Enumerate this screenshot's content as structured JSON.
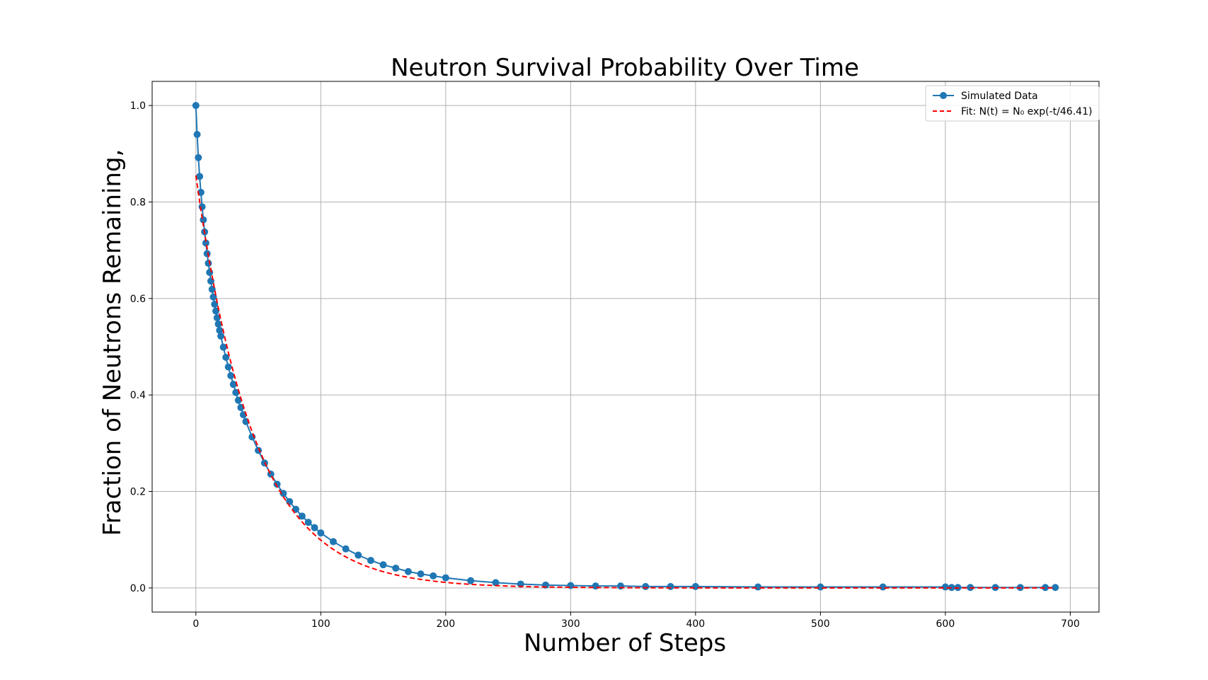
{
  "chart_data": {
    "type": "line",
    "title": "Neutron Survival Probability Over Time",
    "xlabel": "Number of Steps",
    "ylabel": "Fraction of Neutrons Remaining,",
    "xlim": [
      -35,
      723
    ],
    "ylim": [
      -0.05,
      1.05
    ],
    "xticks": [
      0,
      100,
      200,
      300,
      400,
      500,
      600,
      700
    ],
    "yticks": [
      0.0,
      0.2,
      0.4,
      0.6,
      0.8,
      1.0
    ],
    "xtick_labels": [
      "0",
      "100",
      "200",
      "300",
      "400",
      "500",
      "600",
      "700"
    ],
    "ytick_labels": [
      "0.0",
      "0.2",
      "0.4",
      "0.6",
      "0.8",
      "1.0"
    ],
    "grid": true,
    "legend_position": "top-right",
    "series": [
      {
        "name": "Simulated Data",
        "style": "line-with-markers",
        "color": "#1f77b4",
        "x": [
          0,
          1,
          2,
          3,
          4,
          5,
          6,
          7,
          8,
          9,
          10,
          11,
          12,
          13,
          14,
          15,
          16,
          17,
          18,
          19,
          20,
          22,
          24,
          26,
          28,
          30,
          32,
          34,
          36,
          38,
          40,
          45,
          50,
          55,
          60,
          65,
          70,
          75,
          80,
          85,
          90,
          95,
          100,
          110,
          120,
          130,
          140,
          150,
          160,
          170,
          180,
          190,
          200,
          220,
          240,
          260,
          280,
          300,
          320,
          340,
          360,
          380,
          400,
          450,
          500,
          550,
          600,
          605,
          610,
          620,
          640,
          660,
          680,
          688
        ],
        "y": [
          1.0,
          0.94,
          0.892,
          0.853,
          0.82,
          0.79,
          0.763,
          0.738,
          0.715,
          0.693,
          0.673,
          0.654,
          0.636,
          0.619,
          0.603,
          0.588,
          0.574,
          0.56,
          0.547,
          0.534,
          0.522,
          0.499,
          0.478,
          0.458,
          0.44,
          0.422,
          0.405,
          0.389,
          0.374,
          0.359,
          0.345,
          0.313,
          0.285,
          0.259,
          0.236,
          0.215,
          0.196,
          0.179,
          0.163,
          0.149,
          0.136,
          0.125,
          0.114,
          0.096,
          0.081,
          0.068,
          0.057,
          0.048,
          0.041,
          0.034,
          0.029,
          0.025,
          0.021,
          0.015,
          0.011,
          0.008,
          0.006,
          0.005,
          0.004,
          0.004,
          0.003,
          0.003,
          0.003,
          0.002,
          0.002,
          0.002,
          0.002,
          0.001,
          0.001,
          0.001,
          0.001,
          0.001,
          0.001,
          0.001
        ]
      },
      {
        "name": "Fit: N(t) = N₀ exp(-t/46.41)",
        "style": "dashed",
        "color": "#ff0000",
        "n0": 0.855,
        "tau": 46.41,
        "x_range": [
          0,
          688
        ]
      }
    ]
  }
}
